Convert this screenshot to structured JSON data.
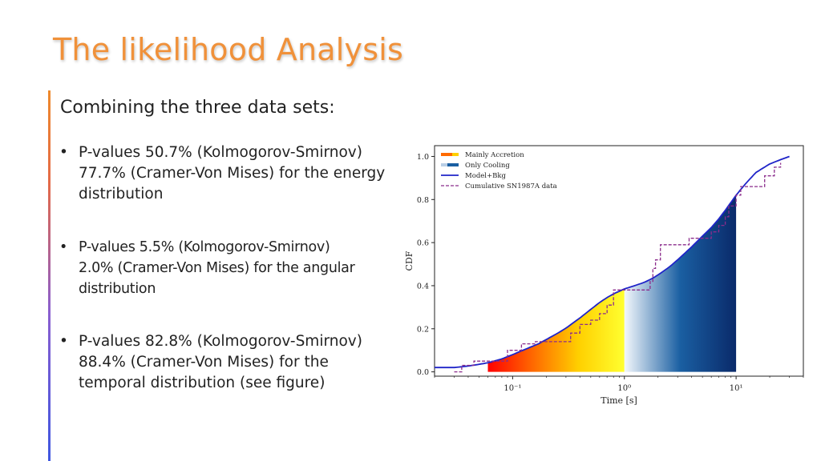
{
  "slide": {
    "title": "The likelihood Analysis",
    "subtitle": "Combining the three data sets:",
    "bullet_glyph": "•",
    "bullets": [
      {
        "line1": "P-values 50.7% (Kolmogorov-Smirnov)",
        "line2": "77.7% (Cramer-Von Mises) for the energy",
        "line3": "distribution"
      },
      {
        "line1": "P-values 5.5% (Kolmogorov-Smirnov)",
        "line2": "2.0% (Cramer-Von Mises) for the angular",
        "line3": "distribution"
      },
      {
        "line1": "P-values 82.8% (Kolmogorov-Smirnov)",
        "line2": "88.4% (Cramer-Von Mises) for the",
        "line3": "temporal distribution (see figure)"
      }
    ]
  },
  "colors": {
    "title": "#f0913a",
    "model_line": "#1f24c8",
    "data_line": "#8b2c8c",
    "accretion": [
      "#ff0000",
      "#ff6a00",
      "#ffd000",
      "#ffff30"
    ],
    "cooling": [
      "#f4f8fc",
      "#1a5fa2",
      "#0a2a6a"
    ]
  },
  "chart_data": {
    "type": "line",
    "xscale": "log",
    "xlabel": "Time [s]",
    "ylabel": "CDF",
    "xlim": [
      0.02,
      40
    ],
    "ylim": [
      -0.02,
      1.05
    ],
    "xticks": [
      {
        "value": 0.1,
        "label": "10⁻¹"
      },
      {
        "value": 1,
        "label": "10⁰"
      },
      {
        "value": 10,
        "label": "10¹"
      }
    ],
    "yticks": [
      {
        "value": 0.0,
        "label": "0.0"
      },
      {
        "value": 0.2,
        "label": "0.2"
      },
      {
        "value": 0.4,
        "label": "0.4"
      },
      {
        "value": 0.6,
        "label": "0.6"
      },
      {
        "value": 0.8,
        "label": "0.8"
      },
      {
        "value": 1.0,
        "label": "1.0"
      }
    ],
    "legend_position": "top-left",
    "legend": [
      {
        "label": "Mainly Accretion",
        "kind": "accretion-gradient"
      },
      {
        "label": "Only Cooling",
        "kind": "cooling-gradient"
      },
      {
        "label": "Model+Bkg",
        "kind": "solid-line"
      },
      {
        "label": "Cumulative SN1987A data",
        "kind": "dashed-line"
      }
    ],
    "regions": [
      {
        "name": "Mainly Accretion",
        "x_start": 0.06,
        "x_end": 1.0
      },
      {
        "name": "Only Cooling",
        "x_start": 1.0,
        "x_end": 10.0
      }
    ],
    "series": [
      {
        "name": "Model+Bkg",
        "style": "solid",
        "x": [
          0.02,
          0.03,
          0.04,
          0.05,
          0.06,
          0.08,
          0.1,
          0.13,
          0.17,
          0.2,
          0.25,
          0.3,
          0.4,
          0.5,
          0.6,
          0.7,
          0.8,
          1.0,
          1.2,
          1.5,
          1.8,
          2.0,
          2.5,
          3.0,
          4.0,
          5.0,
          6.0,
          7.0,
          8.0,
          10.0,
          12.0,
          15.0,
          20.0,
          25.0,
          30.0
        ],
        "y": [
          0.02,
          0.02,
          0.027,
          0.035,
          0.042,
          0.06,
          0.08,
          0.105,
          0.13,
          0.15,
          0.178,
          0.203,
          0.25,
          0.29,
          0.322,
          0.345,
          0.362,
          0.385,
          0.398,
          0.415,
          0.435,
          0.45,
          0.485,
          0.52,
          0.58,
          0.63,
          0.67,
          0.71,
          0.75,
          0.82,
          0.87,
          0.925,
          0.965,
          0.985,
          1.0
        ]
      },
      {
        "name": "Cumulative SN1987A data",
        "style": "dashed-step",
        "x": [
          0.03,
          0.035,
          0.045,
          0.09,
          0.12,
          0.16,
          0.25,
          0.33,
          0.4,
          0.5,
          0.6,
          0.7,
          0.8,
          1.2,
          1.7,
          1.8,
          1.9,
          2.1,
          3.0,
          3.8,
          4.5,
          5.2,
          6.0,
          7.0,
          8.0,
          8.6,
          10.0,
          11.0,
          15.0,
          18.0,
          20.0,
          22.0,
          25.0
        ],
        "y": [
          0.0,
          0.03,
          0.05,
          0.1,
          0.13,
          0.14,
          0.14,
          0.18,
          0.22,
          0.24,
          0.27,
          0.31,
          0.38,
          0.38,
          0.42,
          0.48,
          0.52,
          0.59,
          0.59,
          0.62,
          0.62,
          0.62,
          0.65,
          0.68,
          0.72,
          0.77,
          0.82,
          0.86,
          0.86,
          0.91,
          0.91,
          0.95,
          0.97
        ]
      }
    ]
  }
}
